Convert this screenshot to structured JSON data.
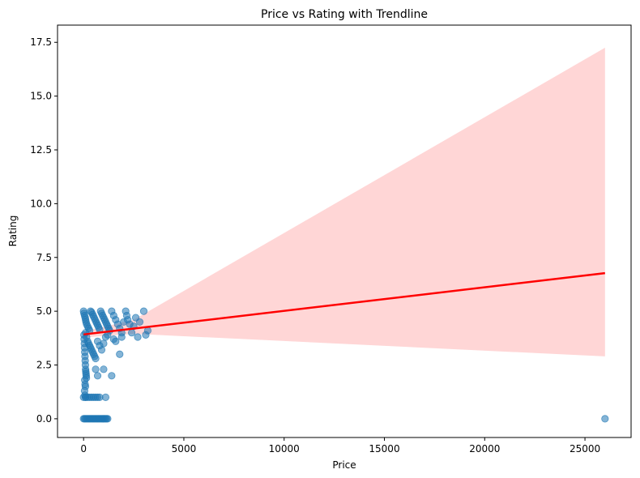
{
  "chart_data": {
    "type": "scatter",
    "title": "Price vs Rating with Trendline",
    "xlabel": "Price",
    "ylabel": "Rating",
    "xlim": [
      -1300,
      27300
    ],
    "ylim": [
      -0.87,
      18.3
    ],
    "xticks": [
      0,
      5000,
      10000,
      15000,
      20000,
      25000
    ],
    "xtick_labels": [
      "0",
      "5000",
      "10000",
      "15000",
      "20000",
      "25000"
    ],
    "yticks": [
      0,
      2.5,
      5,
      7.5,
      10,
      12.5,
      15,
      17.5
    ],
    "ytick_labels": [
      "0.0",
      "2.5",
      "5.0",
      "7.5",
      "10.0",
      "12.5",
      "15.0",
      "17.5"
    ],
    "grid": false,
    "colors": {
      "points": "#1f77b4",
      "trendline": "#ff0000",
      "confidence_band": "#ffd6d6"
    },
    "trendline": {
      "x": [
        0,
        26000
      ],
      "y": [
        3.92,
        6.77
      ]
    },
    "confidence_band": {
      "x": [
        0,
        2500,
        26000
      ],
      "upper": [
        4.05,
        4.6,
        17.25
      ],
      "lower": [
        3.78,
        3.95,
        2.9
      ]
    },
    "series": [
      {
        "values": [
          [
            0,
            5.0
          ],
          [
            20,
            4.9
          ],
          [
            50,
            4.8
          ],
          [
            80,
            4.7
          ],
          [
            100,
            4.6
          ],
          [
            120,
            4.5
          ],
          [
            150,
            4.4
          ],
          [
            200,
            4.3
          ],
          [
            250,
            4.2
          ],
          [
            300,
            4.1
          ],
          [
            350,
            5.0
          ],
          [
            400,
            4.95
          ],
          [
            450,
            4.85
          ],
          [
            500,
            4.75
          ],
          [
            550,
            4.65
          ],
          [
            600,
            4.55
          ],
          [
            650,
            4.45
          ],
          [
            700,
            4.35
          ],
          [
            750,
            4.25
          ],
          [
            800,
            4.15
          ],
          [
            850,
            5.0
          ],
          [
            900,
            4.9
          ],
          [
            950,
            4.8
          ],
          [
            1000,
            4.7
          ],
          [
            1050,
            4.6
          ],
          [
            1100,
            4.5
          ],
          [
            1150,
            4.4
          ],
          [
            1200,
            4.3
          ],
          [
            1250,
            4.2
          ],
          [
            1300,
            4.1
          ],
          [
            1400,
            5.0
          ],
          [
            1500,
            4.8
          ],
          [
            1600,
            4.6
          ],
          [
            1700,
            4.4
          ],
          [
            1800,
            4.2
          ],
          [
            1900,
            4.0
          ],
          [
            2000,
            4.5
          ],
          [
            2100,
            5.0
          ],
          [
            2150,
            4.8
          ],
          [
            2200,
            4.6
          ],
          [
            2300,
            4.4
          ],
          [
            2400,
            4.0
          ],
          [
            2500,
            4.3
          ],
          [
            2600,
            4.7
          ],
          [
            2700,
            3.8
          ],
          [
            2800,
            4.5
          ],
          [
            3000,
            5.0
          ],
          [
            3100,
            3.9
          ],
          [
            3200,
            4.1
          ],
          [
            1500,
            3.7
          ],
          [
            100,
            4.0
          ],
          [
            150,
            3.8
          ],
          [
            200,
            3.6
          ],
          [
            250,
            3.5
          ],
          [
            300,
            3.4
          ],
          [
            350,
            3.3
          ],
          [
            400,
            3.2
          ],
          [
            450,
            3.1
          ],
          [
            500,
            3.0
          ],
          [
            550,
            2.9
          ],
          [
            600,
            2.8
          ],
          [
            700,
            3.6
          ],
          [
            800,
            3.4
          ],
          [
            900,
            3.2
          ],
          [
            1000,
            3.5
          ],
          [
            1100,
            3.8
          ],
          [
            1200,
            3.9
          ],
          [
            1600,
            3.6
          ],
          [
            1800,
            3.0
          ],
          [
            1900,
            3.8
          ],
          [
            20,
            3.9
          ],
          [
            30,
            3.7
          ],
          [
            40,
            3.5
          ],
          [
            50,
            3.3
          ],
          [
            60,
            3.1
          ],
          [
            70,
            2.9
          ],
          [
            80,
            2.7
          ],
          [
            90,
            2.5
          ],
          [
            100,
            2.3
          ],
          [
            110,
            2.2
          ],
          [
            120,
            2.1
          ],
          [
            130,
            2.0
          ],
          [
            140,
            1.9
          ],
          [
            60,
            1.8
          ],
          [
            75,
            1.6
          ],
          [
            90,
            1.5
          ],
          [
            50,
            1.3
          ],
          [
            70,
            1.1
          ],
          [
            100,
            1.0
          ],
          [
            600,
            2.3
          ],
          [
            700,
            2.0
          ],
          [
            1000,
            2.3
          ],
          [
            1400,
            2.0
          ],
          [
            0,
            1.0
          ],
          [
            100,
            1.0
          ],
          [
            200,
            1.0
          ],
          [
            300,
            1.0
          ],
          [
            400,
            1.0
          ],
          [
            500,
            1.0
          ],
          [
            600,
            1.0
          ],
          [
            700,
            1.0
          ],
          [
            800,
            1.0
          ],
          [
            1100,
            1.0
          ],
          [
            0,
            0
          ],
          [
            50,
            0
          ],
          [
            100,
            0
          ],
          [
            150,
            0
          ],
          [
            200,
            0
          ],
          [
            250,
            0
          ],
          [
            300,
            0
          ],
          [
            350,
            0
          ],
          [
            400,
            0
          ],
          [
            450,
            0
          ],
          [
            500,
            0
          ],
          [
            550,
            0
          ],
          [
            600,
            0
          ],
          [
            650,
            0
          ],
          [
            700,
            0
          ],
          [
            750,
            0
          ],
          [
            800,
            0
          ],
          [
            850,
            0
          ],
          [
            900,
            0
          ],
          [
            950,
            0
          ],
          [
            1000,
            0
          ],
          [
            1050,
            0
          ],
          [
            1100,
            0
          ],
          [
            1150,
            0
          ],
          [
            1200,
            0
          ],
          [
            26000,
            0
          ]
        ]
      }
    ]
  }
}
